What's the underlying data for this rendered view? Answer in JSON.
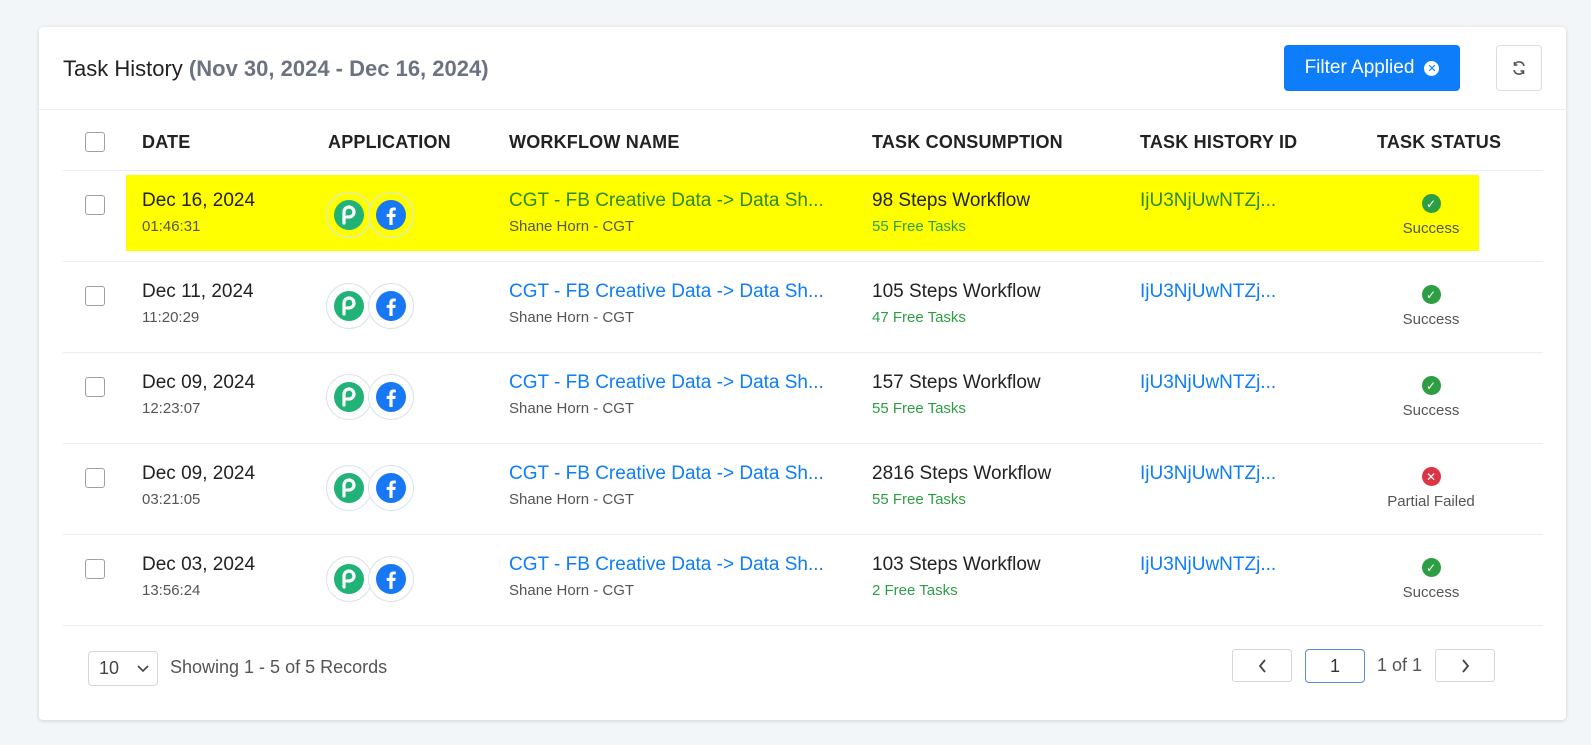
{
  "header": {
    "title": "Task History",
    "date_range": "(Nov 30, 2024 - Dec 16, 2024)",
    "filter_label": "Filter Applied"
  },
  "colors": {
    "accent": "#0d7dfa",
    "success": "#2e9e44",
    "failed": "#dc3545",
    "highlight": "#ffff00"
  },
  "table": {
    "columns": [
      "DATE",
      "APPLICATION",
      "WORKFLOW NAME",
      "TASK CONSUMPTION",
      "TASK HISTORY ID",
      "TASK STATUS"
    ],
    "rows": [
      {
        "date": "Dec 16, 2024",
        "time": "01:46:31",
        "apps": [
          "pabbly-icon",
          "facebook-icon"
        ],
        "workflow": "CGT - FB Creative Data -> Data Sh...",
        "owner": "Shane Horn - CGT",
        "steps": "98 Steps Workflow",
        "free_tasks": "55 Free Tasks",
        "history_id": "IjU3NjUwNTZj...",
        "status": "Success",
        "highlighted": true
      },
      {
        "date": "Dec 11, 2024",
        "time": "11:20:29",
        "apps": [
          "pabbly-icon",
          "facebook-icon"
        ],
        "workflow": "CGT - FB Creative Data -> Data Sh...",
        "owner": "Shane Horn - CGT",
        "steps": "105 Steps Workflow",
        "free_tasks": "47 Free Tasks",
        "history_id": "IjU3NjUwNTZj...",
        "status": "Success",
        "highlighted": false
      },
      {
        "date": "Dec 09, 2024",
        "time": "12:23:07",
        "apps": [
          "pabbly-icon",
          "facebook-icon"
        ],
        "workflow": "CGT - FB Creative Data -> Data Sh...",
        "owner": "Shane Horn - CGT",
        "steps": "157 Steps Workflow",
        "free_tasks": "55 Free Tasks",
        "history_id": "IjU3NjUwNTZj...",
        "status": "Success",
        "highlighted": false
      },
      {
        "date": "Dec 09, 2024",
        "time": "03:21:05",
        "apps": [
          "pabbly-icon",
          "facebook-icon"
        ],
        "workflow": "CGT - FB Creative Data -> Data Sh...",
        "owner": "Shane Horn - CGT",
        "steps": "2816 Steps Workflow",
        "free_tasks": "55 Free Tasks",
        "history_id": "IjU3NjUwNTZj...",
        "status": "Partial Failed",
        "highlighted": false
      },
      {
        "date": "Dec 03, 2024",
        "time": "13:56:24",
        "apps": [
          "pabbly-icon",
          "facebook-icon"
        ],
        "workflow": "CGT - FB Creative Data -> Data Sh...",
        "owner": "Shane Horn - CGT",
        "steps": "103 Steps Workflow",
        "free_tasks": "2 Free Tasks",
        "history_id": "IjU3NjUwNTZj...",
        "status": "Success",
        "highlighted": false
      }
    ]
  },
  "footer": {
    "page_size": "10",
    "showing": "Showing 1 - 5 of 5 Records",
    "current_page": "1",
    "page_of": "1 of 1"
  }
}
